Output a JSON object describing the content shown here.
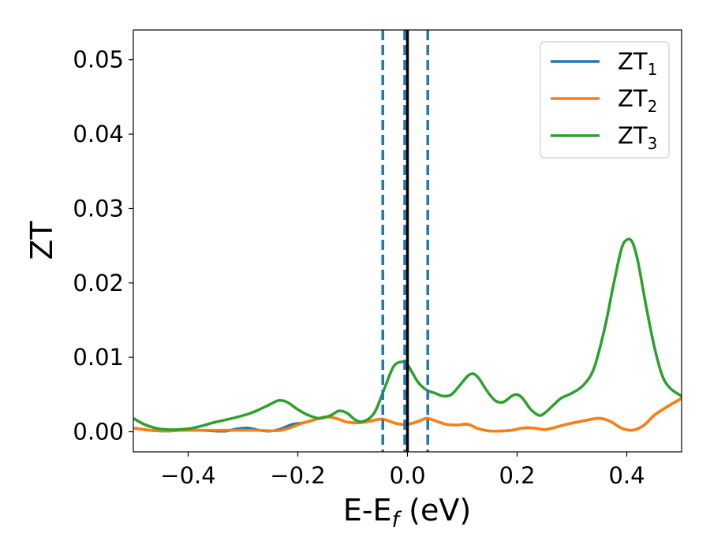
{
  "chart_data": {
    "type": "line",
    "xlabel": "E-E",
    "xlabel_sub": "f",
    "xlabel_unit": " (eV)",
    "ylabel": "ZT",
    "xlim": [
      -0.5,
      0.5
    ],
    "ylim": [
      -0.0027,
      0.054
    ],
    "x_ticks": [
      -0.4,
      -0.2,
      0.0,
      0.2,
      0.4
    ],
    "x_tick_labels": [
      "−0.4",
      "−0.2",
      "0.0",
      "0.2",
      "0.4"
    ],
    "y_ticks": [
      0.0,
      0.01,
      0.02,
      0.03,
      0.04,
      0.05
    ],
    "y_tick_labels": [
      "0.00",
      "0.01",
      "0.02",
      "0.03",
      "0.04",
      "0.05"
    ],
    "grid": false,
    "legend_position": "top-right",
    "vertical_lines": [
      {
        "x": -0.045,
        "style": "dashed",
        "color": "#1f77b4"
      },
      {
        "x": -0.005,
        "style": "dashed",
        "color": "#1f77b4"
      },
      {
        "x": 0.037,
        "style": "dashed",
        "color": "#1f77b4"
      },
      {
        "x": 0.0,
        "style": "solid",
        "color": "#000000"
      }
    ],
    "series": [
      {
        "name": "ZT",
        "sub": "1",
        "color": "#1f77b4",
        "x": [
          -0.5,
          -0.47,
          -0.44,
          -0.41,
          -0.38,
          -0.35,
          -0.33,
          -0.31,
          -0.29,
          -0.27,
          -0.25,
          -0.23,
          -0.21,
          -0.19,
          -0.17,
          -0.15,
          -0.13,
          -0.11,
          -0.09,
          -0.07,
          -0.05,
          -0.04,
          -0.02,
          0.0,
          0.02,
          0.035,
          0.05,
          0.07,
          0.09,
          0.11,
          0.13,
          0.15,
          0.17,
          0.19,
          0.21,
          0.23,
          0.25,
          0.27,
          0.29,
          0.31,
          0.33,
          0.35,
          0.37,
          0.39,
          0.41,
          0.43,
          0.45,
          0.47,
          0.5
        ],
        "y": [
          0.0005,
          0.0002,
          0.0001,
          0.0002,
          0.0002,
          0.0001,
          0.0001,
          0.0004,
          0.0005,
          0.0002,
          0.0001,
          0.0004,
          0.001,
          0.0012,
          0.0016,
          0.002,
          0.0018,
          0.0013,
          0.0012,
          0.0014,
          0.0017,
          0.0016,
          0.0011,
          0.001,
          0.0014,
          0.0018,
          0.0015,
          0.001,
          0.0009,
          0.001,
          0.0004,
          0.0001,
          0.0001,
          0.0002,
          0.0005,
          0.0005,
          0.0003,
          0.0006,
          0.001,
          0.0013,
          0.0016,
          0.0018,
          0.0014,
          0.0005,
          0.0002,
          0.0008,
          0.0022,
          0.0032,
          0.0045
        ]
      },
      {
        "name": "ZT",
        "sub": "2",
        "color": "#ff7f0e",
        "x": [
          -0.5,
          -0.47,
          -0.44,
          -0.41,
          -0.38,
          -0.35,
          -0.31,
          -0.27,
          -0.23,
          -0.19,
          -0.17,
          -0.15,
          -0.13,
          -0.11,
          -0.09,
          -0.07,
          -0.05,
          -0.04,
          -0.02,
          0.0,
          0.02,
          0.035,
          0.05,
          0.07,
          0.09,
          0.11,
          0.13,
          0.15,
          0.17,
          0.19,
          0.21,
          0.23,
          0.25,
          0.27,
          0.29,
          0.31,
          0.33,
          0.35,
          0.37,
          0.39,
          0.41,
          0.43,
          0.45,
          0.47,
          0.5
        ],
        "y": [
          0.0005,
          0.0002,
          0.0001,
          0.0002,
          0.0002,
          0.0002,
          0.0002,
          0.0002,
          0.0002,
          0.0012,
          0.0016,
          0.002,
          0.0018,
          0.0013,
          0.0012,
          0.0014,
          0.0017,
          0.0016,
          0.0011,
          0.001,
          0.0014,
          0.0018,
          0.0015,
          0.001,
          0.0009,
          0.001,
          0.0004,
          0.0001,
          0.0001,
          0.0002,
          0.0005,
          0.0005,
          0.0003,
          0.0006,
          0.001,
          0.0013,
          0.0016,
          0.0018,
          0.0014,
          0.0005,
          0.0002,
          0.0008,
          0.0022,
          0.0032,
          0.0045
        ]
      },
      {
        "name": "ZT",
        "sub": "3",
        "color": "#2ca02c",
        "x": [
          -0.5,
          -0.48,
          -0.46,
          -0.44,
          -0.42,
          -0.4,
          -0.38,
          -0.35,
          -0.32,
          -0.29,
          -0.27,
          -0.25,
          -0.235,
          -0.22,
          -0.2,
          -0.18,
          -0.16,
          -0.14,
          -0.125,
          -0.11,
          -0.095,
          -0.08,
          -0.06,
          -0.04,
          -0.025,
          -0.01,
          0.0,
          0.01,
          0.02,
          0.035,
          0.05,
          0.065,
          0.08,
          0.095,
          0.11,
          0.12,
          0.13,
          0.145,
          0.16,
          0.175,
          0.19,
          0.2,
          0.21,
          0.225,
          0.24,
          0.25,
          0.265,
          0.28,
          0.3,
          0.32,
          0.34,
          0.36,
          0.375,
          0.39,
          0.4,
          0.41,
          0.42,
          0.435,
          0.45,
          0.465,
          0.48,
          0.5
        ],
        "y": [
          0.0018,
          0.001,
          0.0005,
          0.0003,
          0.0003,
          0.0004,
          0.0007,
          0.0013,
          0.0018,
          0.0024,
          0.003,
          0.0037,
          0.0042,
          0.004,
          0.003,
          0.0022,
          0.0018,
          0.0022,
          0.0028,
          0.0025,
          0.0016,
          0.0014,
          0.0026,
          0.0062,
          0.0088,
          0.0094,
          0.009,
          0.0078,
          0.0066,
          0.0056,
          0.0052,
          0.0048,
          0.005,
          0.0062,
          0.0075,
          0.0078,
          0.0072,
          0.0055,
          0.0042,
          0.004,
          0.0048,
          0.005,
          0.0045,
          0.003,
          0.0022,
          0.0025,
          0.0035,
          0.0045,
          0.0052,
          0.0062,
          0.0085,
          0.014,
          0.0195,
          0.0245,
          0.0258,
          0.0255,
          0.023,
          0.017,
          0.0115,
          0.0075,
          0.0058,
          0.0048
        ]
      }
    ]
  }
}
